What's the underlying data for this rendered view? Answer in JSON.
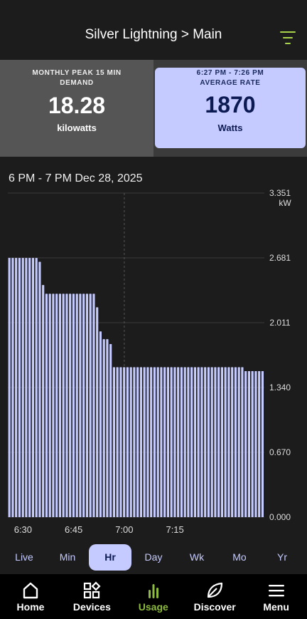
{
  "header": {
    "title": "Silver Lightning > Main",
    "filter_icon": "filter-icon"
  },
  "stats": {
    "left": {
      "caption": "MONTHLY PEAK 15 MIN DEMAND",
      "value": "18.28",
      "unit": "kilowatts"
    },
    "right": {
      "caption_time": "6:27 PM - 7:26 PM",
      "caption": "AVERAGE RATE",
      "value": "1870",
      "unit": "Watts"
    }
  },
  "range_label": "6 PM - 7 PM Dec 28, 2025",
  "colors": {
    "bar": "#c5cbff",
    "accent": "#8dbb3e"
  },
  "chart_data": {
    "type": "bar",
    "y_unit": "kW",
    "y_ticks": [
      "3.351",
      "2.681",
      "2.011",
      "1.340",
      "0.670",
      "0.000"
    ],
    "ylim": [
      0,
      3.351
    ],
    "x_ticks": [
      "6:30",
      "6:45",
      "7:00",
      "7:15"
    ],
    "highlight_tick": "7:00",
    "values": [
      2.68,
      2.68,
      2.68,
      2.68,
      2.68,
      2.68,
      2.68,
      2.68,
      2.68,
      2.64,
      2.4,
      2.31,
      2.31,
      2.31,
      2.31,
      2.31,
      2.31,
      2.31,
      2.31,
      2.31,
      2.31,
      2.31,
      2.31,
      2.31,
      2.31,
      2.31,
      2.17,
      1.92,
      1.84,
      1.84,
      1.79,
      1.55,
      1.55,
      1.55,
      1.55,
      1.55,
      1.55,
      1.55,
      1.55,
      1.55,
      1.55,
      1.55,
      1.55,
      1.55,
      1.55,
      1.55,
      1.55,
      1.55,
      1.55,
      1.55,
      1.55,
      1.55,
      1.55,
      1.55,
      1.55,
      1.55,
      1.55,
      1.55,
      1.55,
      1.55,
      1.55,
      1.55,
      1.55,
      1.55,
      1.55,
      1.55,
      1.55,
      1.55,
      1.55,
      1.55,
      1.51,
      1.51,
      1.51,
      1.51,
      1.51,
      1.51
    ]
  },
  "periods": [
    "Live",
    "Min",
    "Hr",
    "Day",
    "Wk",
    "Mo",
    "Yr"
  ],
  "active_period": "Hr",
  "nav": [
    {
      "label": "Home",
      "icon": "home-icon"
    },
    {
      "label": "Devices",
      "icon": "devices-icon"
    },
    {
      "label": "Usage",
      "icon": "usage-icon",
      "active": true
    },
    {
      "label": "Discover",
      "icon": "leaf-icon"
    },
    {
      "label": "Menu",
      "icon": "menu-icon"
    }
  ]
}
